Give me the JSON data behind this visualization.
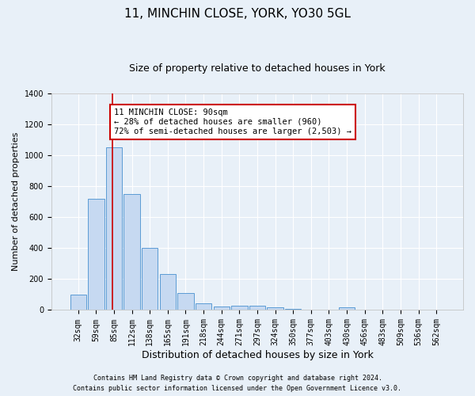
{
  "title1": "11, MINCHIN CLOSE, YORK, YO30 5GL",
  "title2": "Size of property relative to detached houses in York",
  "xlabel": "Distribution of detached houses by size in York",
  "ylabel": "Number of detached properties",
  "categories": [
    "32sqm",
    "59sqm",
    "85sqm",
    "112sqm",
    "138sqm",
    "165sqm",
    "191sqm",
    "218sqm",
    "244sqm",
    "271sqm",
    "297sqm",
    "324sqm",
    "350sqm",
    "377sqm",
    "403sqm",
    "430sqm",
    "456sqm",
    "483sqm",
    "509sqm",
    "536sqm",
    "562sqm"
  ],
  "values": [
    100,
    720,
    1050,
    750,
    400,
    235,
    110,
    45,
    25,
    30,
    30,
    20,
    5,
    0,
    0,
    20,
    0,
    0,
    0,
    0,
    0
  ],
  "bar_color": "#c6d9f1",
  "bar_edge_color": "#5b9bd5",
  "vline_color": "#cc0000",
  "annotation_text": "11 MINCHIN CLOSE: 90sqm\n← 28% of detached houses are smaller (960)\n72% of semi-detached houses are larger (2,503) →",
  "annotation_box_color": "#ffffff",
  "annotation_box_edge": "#cc0000",
  "ylim": [
    0,
    1400
  ],
  "yticks": [
    0,
    200,
    400,
    600,
    800,
    1000,
    1200,
    1400
  ],
  "footer1": "Contains HM Land Registry data © Crown copyright and database right 2024.",
  "footer2": "Contains public sector information licensed under the Open Government Licence v3.0.",
  "bg_color": "#e8f0f8",
  "grid_color": "#ffffff",
  "title1_fontsize": 11,
  "title2_fontsize": 9,
  "ylabel_fontsize": 8,
  "xlabel_fontsize": 9,
  "tick_fontsize": 7,
  "annot_fontsize": 7.5,
  "footer_fontsize": 6
}
